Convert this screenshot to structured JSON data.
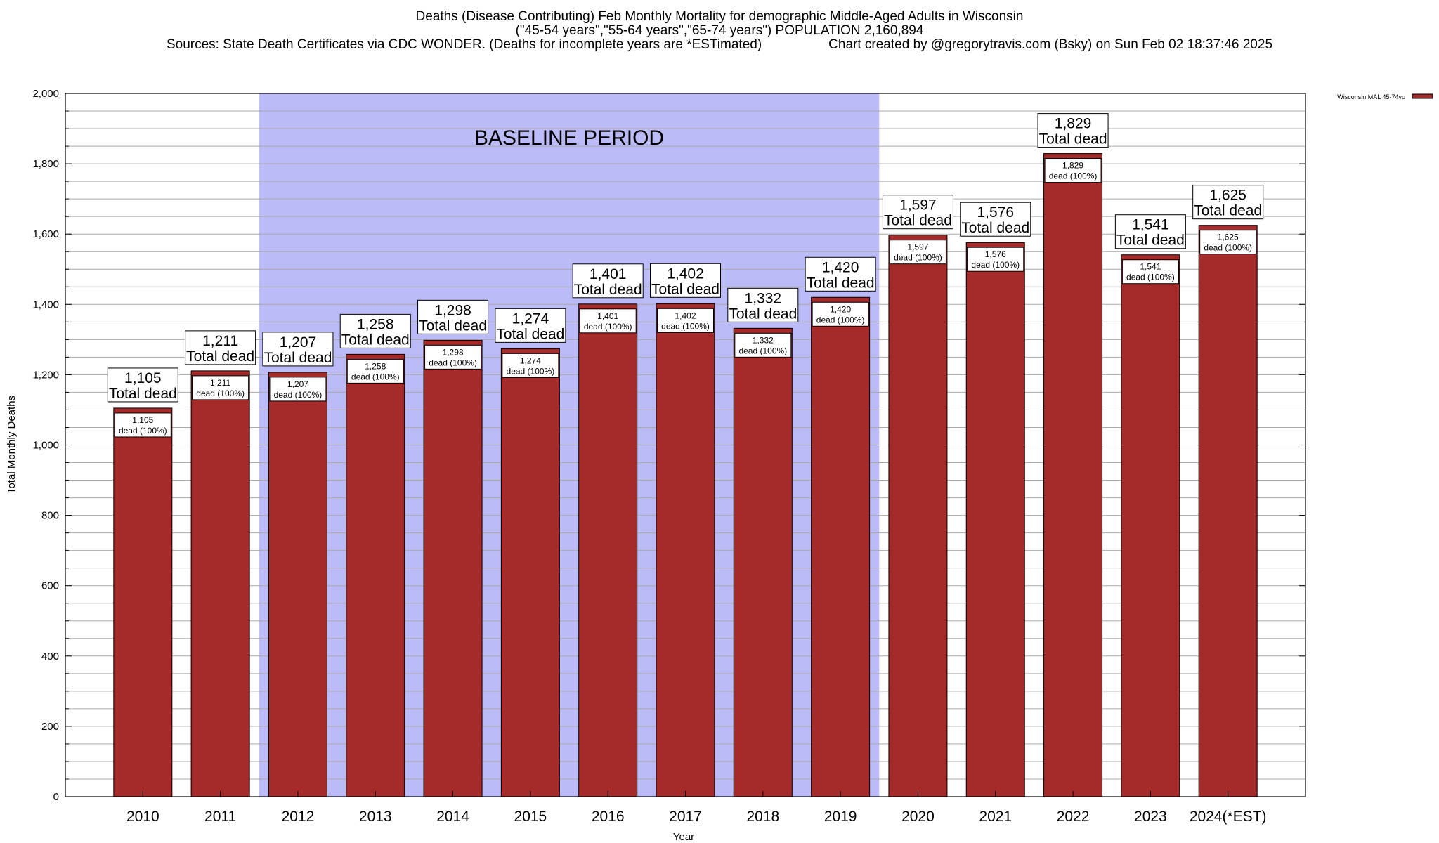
{
  "header": {
    "title_line1": "Deaths (Disease Contributing) Feb Monthly Mortality for demographic Middle-Aged Adults in Wisconsin",
    "title_line2": "(\"45-54 years\",\"55-64 years\",\"65-74 years\") POPULATION 2,160,894",
    "sources": "Sources: State Death Certificates via CDC WONDER. (Deaths for incomplete years are *ESTimated)",
    "credit": "Chart created by @gregorytravis.com (Bsky) on Sun Feb 02 18:37:46 2025"
  },
  "chart_data": {
    "type": "bar",
    "xlabel": "Year",
    "ylabel": "Total Monthly Deaths",
    "ylim": [
      0,
      2000
    ],
    "y_ticks": [
      0,
      200,
      400,
      600,
      800,
      1000,
      1200,
      1400,
      1600,
      1800,
      2000
    ],
    "y_tick_labels": [
      "0",
      "200",
      "400",
      "600",
      "800",
      "1,000",
      "1,200",
      "1,400",
      "1,600",
      "1,800",
      "2,000"
    ],
    "grid": "horizontal minor lines every 50",
    "legend_position": "top-right",
    "categories": [
      "2010",
      "2011",
      "2012",
      "2013",
      "2014",
      "2015",
      "2016",
      "2017",
      "2018",
      "2019",
      "2020",
      "2021",
      "2022",
      "2023",
      "2024(*EST)"
    ],
    "series": [
      {
        "name": "Wisconsin MAL 45-74yo",
        "color": "#a52a2a",
        "values": [
          1105,
          1211,
          1207,
          1258,
          1298,
          1274,
          1401,
          1402,
          1332,
          1420,
          1597,
          1576,
          1829,
          1541,
          1625
        ]
      }
    ],
    "value_labels": [
      "1,105",
      "1,211",
      "1,207",
      "1,258",
      "1,298",
      "1,274",
      "1,401",
      "1,402",
      "1,332",
      "1,420",
      "1,597",
      "1,576",
      "1,829",
      "1,541",
      "1,625"
    ],
    "top_label_suffix": "Total dead",
    "inner_label_suffix": "dead (100%)",
    "baseline_region": {
      "label": "BASELINE PERIOD",
      "from": "2012",
      "to": "2019",
      "color": "#bbbbf7"
    }
  }
}
